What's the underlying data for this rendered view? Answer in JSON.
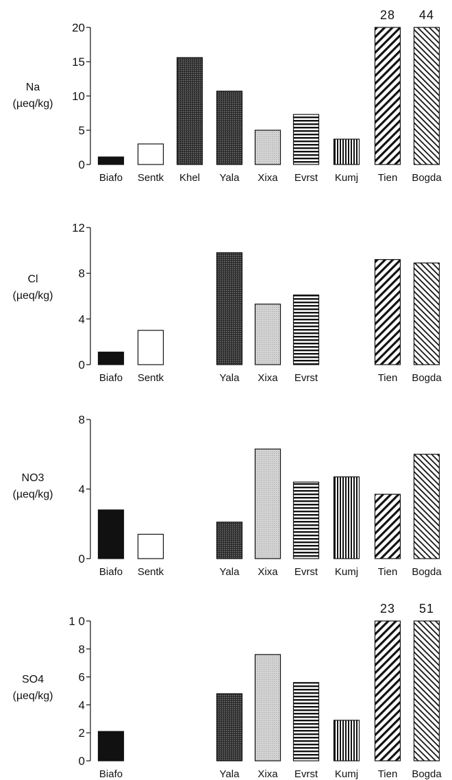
{
  "chart_data": [
    {
      "type": "bar",
      "ylabel_lines": [
        "Na",
        "(µeq/kg)"
      ],
      "ylim": [
        0,
        20
      ],
      "yticks": [
        0,
        5,
        10,
        15,
        20
      ],
      "ytick_labels": [
        "0",
        "5",
        "10",
        "15",
        "20"
      ],
      "categories": [
        "Biafo",
        "Sentk",
        "Khel",
        "Yala",
        "Xixa",
        "Evrst",
        "Kumj",
        "Tien",
        "Bogda"
      ],
      "values": [
        1.1,
        3.0,
        15.6,
        10.7,
        5.0,
        7.3,
        3.7,
        28,
        44
      ],
      "bar_labels": [
        "",
        "",
        "",
        "",
        "",
        "",
        "",
        "28",
        "44"
      ]
    },
    {
      "type": "bar",
      "ylabel_lines": [
        "Cl",
        "(µeq/kg)"
      ],
      "ylim": [
        0,
        12
      ],
      "yticks": [
        0,
        4,
        8,
        12
      ],
      "ytick_labels": [
        "0",
        "4",
        "8",
        "12"
      ],
      "categories": [
        "Biafo",
        "Sentk",
        "",
        "Yala",
        "Xixa",
        "Evrst",
        "",
        "Tien",
        "Bogda"
      ],
      "values": [
        1.1,
        3.0,
        null,
        9.8,
        5.3,
        6.1,
        null,
        9.2,
        8.9
      ],
      "bar_labels": [
        "",
        "",
        "",
        "",
        "",
        "",
        "",
        "",
        ""
      ]
    },
    {
      "type": "bar",
      "ylabel_lines": [
        "NO3",
        "(µeq/kg)"
      ],
      "ylim": [
        0,
        8
      ],
      "yticks": [
        0,
        4,
        8
      ],
      "ytick_labels": [
        "0",
        "4",
        "8"
      ],
      "categories": [
        "Biafo",
        "Sentk",
        "",
        "Yala",
        "Xixa",
        "Evrst",
        "Kumj",
        "Tien",
        "Bogda"
      ],
      "values": [
        2.8,
        1.4,
        null,
        2.1,
        6.3,
        4.4,
        4.7,
        3.7,
        6.0
      ],
      "bar_labels": [
        "",
        "",
        "",
        "",
        "",
        "",
        "",
        "",
        ""
      ]
    },
    {
      "type": "bar",
      "ylabel_lines": [
        "SO4",
        "(µeq/kg)"
      ],
      "ylim": [
        0,
        10
      ],
      "yticks": [
        0,
        2,
        4,
        6,
        8,
        10
      ],
      "ytick_labels": [
        "0",
        "2",
        "4",
        "6",
        "8",
        "1 0"
      ],
      "categories": [
        "Biafo",
        "",
        "",
        "Yala",
        "Xixa",
        "Evrst",
        "Kumj",
        "Tien",
        "Bogda"
      ],
      "values": [
        2.1,
        null,
        null,
        4.8,
        7.6,
        5.6,
        2.9,
        23,
        51
      ],
      "bar_labels": [
        "",
        "",
        "",
        "",
        "",
        "",
        "",
        "23",
        "51"
      ]
    }
  ],
  "bar_fill_styles": [
    "solid-dark",
    "empty",
    "dark-stipple",
    "dark-stipple",
    "light-stipple",
    "horizontal-stripes",
    "vertical-stripes",
    "diagonal-hatch-wide",
    "diagonal-hatch-fine"
  ],
  "colors": {
    "ink": "#111111",
    "background": "#ffffff",
    "light_stipple": "#cfcfcf",
    "dark_stipple": "#3a3a3a"
  }
}
